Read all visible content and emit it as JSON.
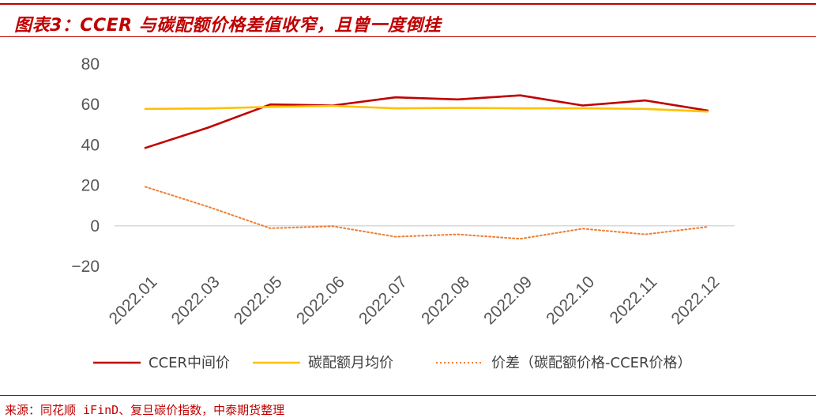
{
  "title": "图表3：CCER 与碳配额价格差值收窄，且曾一度倒挂",
  "source": "来源：同花顺 iFinD、复旦碳价指数，中泰期货整理",
  "colors": {
    "accent": "#c00000",
    "ccer": "#c00000",
    "quota": "#ffc000",
    "spread": "#ed7d31"
  },
  "chart_data": {
    "type": "line",
    "categories": [
      "2022.01",
      "2022.03",
      "2022.05",
      "2022.06",
      "2022.07",
      "2022.08",
      "2022.09",
      "2022.10",
      "2022.11",
      "2022.12"
    ],
    "ylim": [
      -20,
      80
    ],
    "yticks": [
      80,
      60,
      40,
      20,
      0,
      -20
    ],
    "ytick_labels": [
      "80",
      "60",
      "40",
      "20",
      "0",
      "−20"
    ],
    "grid": false,
    "zero_line": true,
    "legend_position": "bottom",
    "series": [
      {
        "name": "CCER中间价",
        "style": "solid",
        "color": "#c00000",
        "values": [
          38.5,
          48.5,
          60,
          59.5,
          63.5,
          62.5,
          64.5,
          59.5,
          62,
          57
        ]
      },
      {
        "name": "碳配额月均价",
        "style": "solid",
        "color": "#ffc000",
        "values": [
          57.8,
          58,
          58.8,
          59.3,
          58.1,
          58.3,
          58.1,
          58.1,
          57.8,
          56.5
        ]
      },
      {
        "name": "价差（碳配额价格-CCER价格）",
        "style": "dotted",
        "color": "#ed7d31",
        "values": [
          19.3,
          9.5,
          -1.2,
          -0.2,
          -5.4,
          -4.2,
          -6.4,
          -1.4,
          -4.2,
          -0.5
        ]
      }
    ]
  }
}
